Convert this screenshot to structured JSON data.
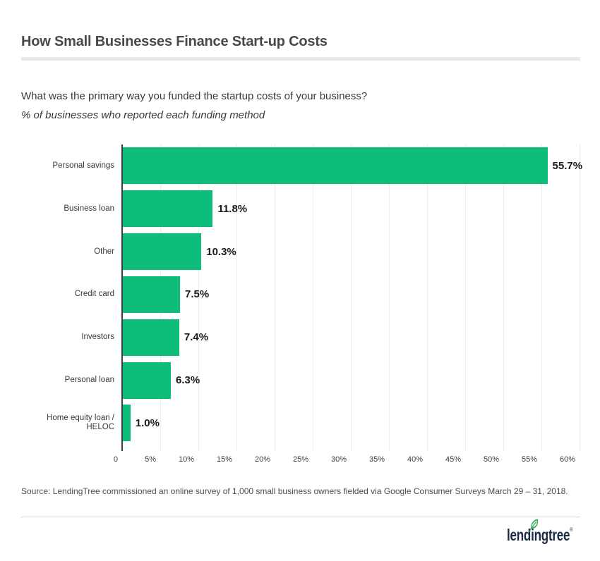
{
  "header": {
    "title": "How Small Businesses Finance Start-up Costs"
  },
  "chart": {
    "question": "What was the primary way you funded the startup costs of your business?",
    "subtitle": "% of businesses who reported each funding method"
  },
  "chart_data": {
    "type": "bar",
    "orientation": "horizontal",
    "title": "How Small Businesses Finance Start-up Costs",
    "xlabel": "",
    "ylabel": "",
    "categories": [
      "Personal savings",
      "Business loan",
      "Other",
      "Credit card",
      "Investors",
      "Personal loan",
      "Home equity loan / HELOC"
    ],
    "values": [
      55.7,
      11.8,
      10.3,
      7.5,
      7.4,
      6.3,
      1.0
    ],
    "value_labels": [
      "55.7%",
      "11.8%",
      "10.3%",
      "7.5%",
      "7.4%",
      "6.3%",
      "1.0%"
    ],
    "x_ticks": [
      "0",
      "5%",
      "10%",
      "15%",
      "20%",
      "25%",
      "30%",
      "35%",
      "40%",
      "45%",
      "50%",
      "55%",
      "60%"
    ],
    "xlim": [
      0,
      60
    ],
    "grid": true,
    "legend": false,
    "bar_color": "#0fbd7b"
  },
  "source": {
    "text": "Source: LendingTree commissioned an online survey of 1,000 small business owners fielded via Google Consumer Surveys March 29 – 31, 2018."
  },
  "footer": {
    "logo_text": "lendingtree",
    "trademark": "®",
    "logo_color": "#1b2a44",
    "leaf_color": "#2fae57"
  }
}
